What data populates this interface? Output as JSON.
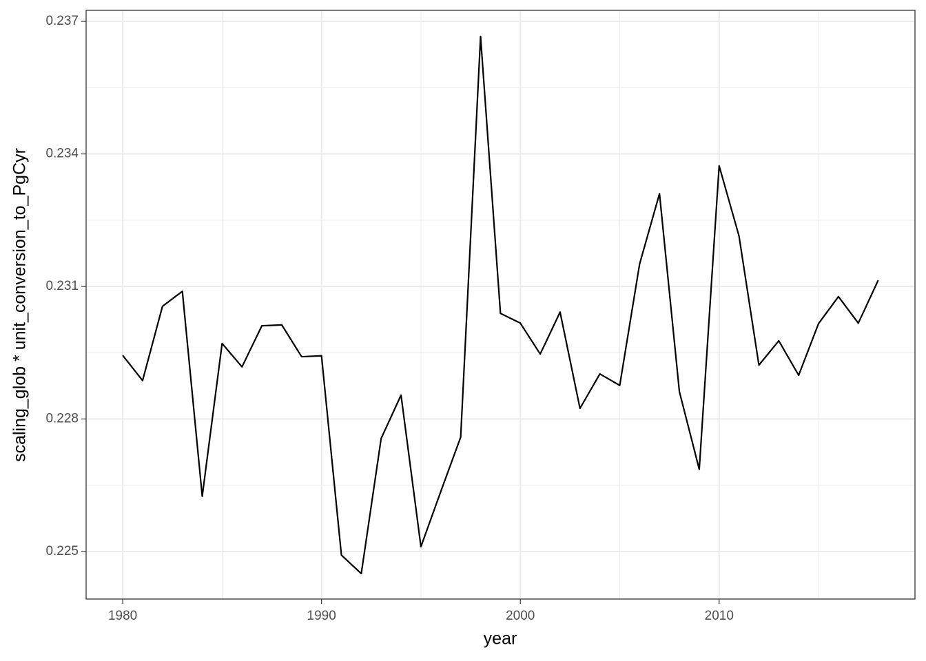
{
  "chart_data": {
    "type": "line",
    "x_label": "year",
    "y_label": "scaling_glob * unit_conversion_to_PgCyr",
    "x": [
      1980,
      1981,
      1982,
      1983,
      1984,
      1985,
      1986,
      1987,
      1988,
      1989,
      1990,
      1991,
      1992,
      1993,
      1994,
      1995,
      1996,
      1997,
      1998,
      1999,
      2000,
      2001,
      2002,
      2003,
      2004,
      2005,
      2006,
      2007,
      2008,
      2009,
      2010,
      2011,
      2012,
      2013,
      2014,
      2015,
      2016,
      2017,
      2018
    ],
    "values": [
      0.22944,
      0.22887,
      0.23055,
      0.23089,
      0.22625,
      0.22971,
      0.22918,
      0.23011,
      0.23013,
      0.22941,
      0.22943,
      0.22492,
      0.2245,
      0.22756,
      0.22854,
      0.22511,
      0.22636,
      0.22759,
      0.23666,
      0.23039,
      0.23017,
      0.22947,
      0.23042,
      0.22824,
      0.22902,
      0.22876,
      0.23151,
      0.2331,
      0.22862,
      0.22686,
      0.23373,
      0.23214,
      0.22922,
      0.22977,
      0.22899,
      0.23016,
      0.23077,
      0.23017,
      0.23114
    ],
    "color": "#000000",
    "xlim": [
      1978.16,
      2019.85
    ],
    "ylim": [
      0.223925,
      0.23725
    ],
    "xticks": [
      1980,
      1990,
      2000,
      2010
    ],
    "yticks": [
      0.225,
      0.228,
      0.231,
      0.234,
      0.237
    ],
    "grid": true
  }
}
